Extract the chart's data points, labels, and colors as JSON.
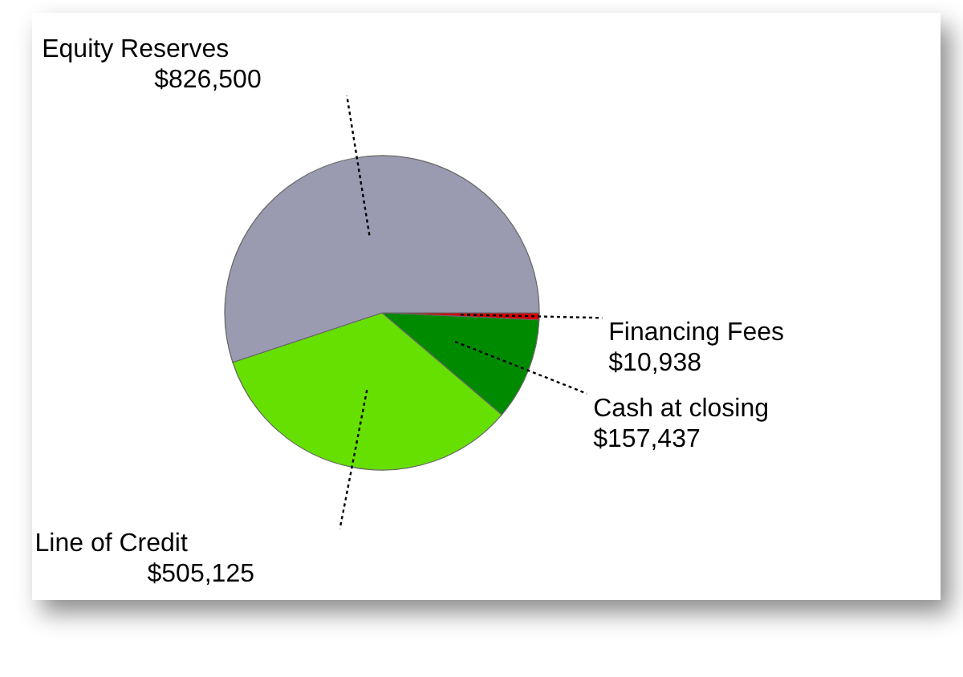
{
  "chart_data": {
    "type": "pie",
    "categories": [
      "Financing Fees",
      "Cash at closing",
      "Line of Credit",
      "Equity Reserves"
    ],
    "values": [
      10938,
      157437,
      505125,
      826500
    ],
    "value_labels": [
      "$10,938",
      "$157,437",
      "$505,125",
      "$826,500"
    ],
    "colors": [
      "#d40000",
      "#008a00",
      "#66e000",
      "#9a9ab0"
    ]
  }
}
